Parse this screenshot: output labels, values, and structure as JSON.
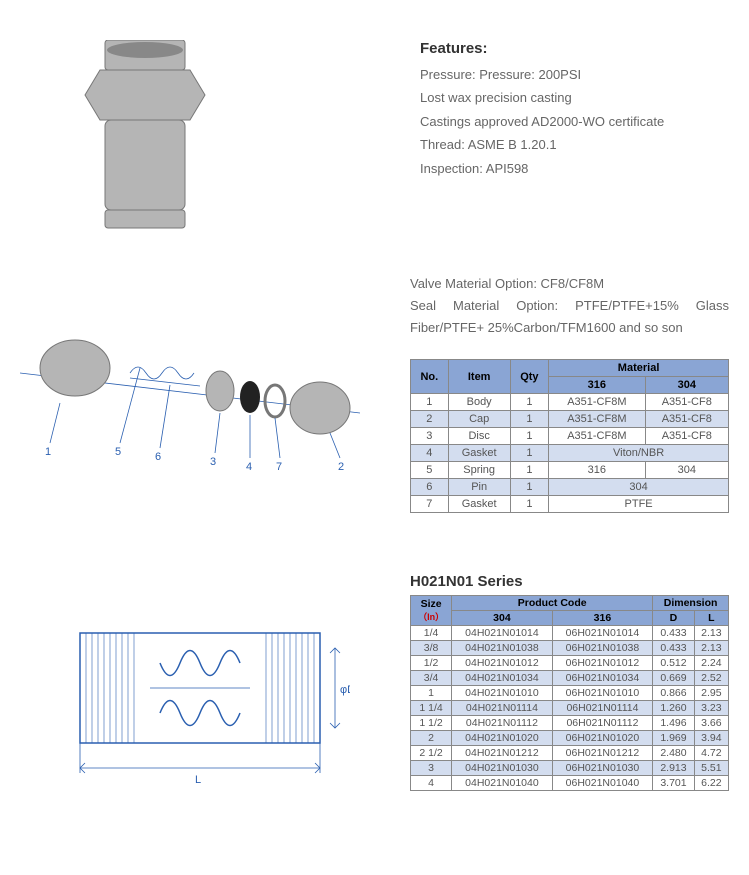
{
  "features": {
    "title": "Features:",
    "lines": [
      "Pressure: Pressure: 200PSI",
      "Lost wax precision casting",
      "Castings approved AD2000-WO certificate",
      "Thread: ASME B 1.20.1",
      "Inspection: API598"
    ]
  },
  "material_options": {
    "line1": "Valve Material Option: CF8/CF8M",
    "line2": "Seal Material Option: PTFE/PTFE+15% Glass Fiber/PTFE+ 25%Carbon/TFM1600 and so son"
  },
  "bom": {
    "headers": {
      "no": "No.",
      "item": "Item",
      "qty": "Qty",
      "material": "Material",
      "m316": "316",
      "m304": "304"
    },
    "rows": [
      {
        "no": "1",
        "item": "Body",
        "qty": "1",
        "m316": "A351-CF8M",
        "m304": "A351-CF8",
        "alt": false
      },
      {
        "no": "2",
        "item": "Cap",
        "qty": "1",
        "m316": "A351-CF8M",
        "m304": "A351-CF8",
        "alt": true
      },
      {
        "no": "3",
        "item": "Disc",
        "qty": "1",
        "m316": "A351-CF8M",
        "m304": "A351-CF8",
        "alt": false
      },
      {
        "no": "4",
        "item": "Gasket",
        "qty": "1",
        "merged": "Viton/NBR",
        "alt": true
      },
      {
        "no": "5",
        "item": "Spring",
        "qty": "1",
        "m316": "316",
        "m304": "304",
        "alt": false
      },
      {
        "no": "6",
        "item": "Pin",
        "qty": "1",
        "merged": "304",
        "alt": true
      },
      {
        "no": "7",
        "item": "Gasket",
        "qty": "1",
        "merged": "PTFE",
        "alt": false
      }
    ]
  },
  "series": {
    "title": "H021N01 Series",
    "headers": {
      "size": "Size",
      "unit": "（In）",
      "code": "Product Code",
      "c304": "304",
      "c316": "316",
      "dim": "Dimension",
      "d": "D",
      "l": "L"
    },
    "rows": [
      {
        "size": "1/4",
        "c304": "04H021N01014",
        "c316": "06H021N01014",
        "d": "0.433",
        "l": "2.13",
        "alt": false
      },
      {
        "size": "3/8",
        "c304": "04H021N01038",
        "c316": "06H021N01038",
        "d": "0.433",
        "l": "2.13",
        "alt": true
      },
      {
        "size": "1/2",
        "c304": "04H021N01012",
        "c316": "06H021N01012",
        "d": "0.512",
        "l": "2.24",
        "alt": false
      },
      {
        "size": "3/4",
        "c304": "04H021N01034",
        "c316": "06H021N01034",
        "d": "0.669",
        "l": "2.52",
        "alt": true
      },
      {
        "size": "1",
        "c304": "04H021N01010",
        "c316": "06H021N01010",
        "d": "0.866",
        "l": "2.95",
        "alt": false
      },
      {
        "size": "1 1/4",
        "c304": "04H021N01114",
        "c316": "06H021N01114",
        "d": "1.260",
        "l": "3.23",
        "alt": true
      },
      {
        "size": "1 1/2",
        "c304": "04H021N01112",
        "c316": "06H021N01112",
        "d": "1.496",
        "l": "3.66",
        "alt": false
      },
      {
        "size": "2",
        "c304": "04H021N01020",
        "c316": "06H021N01020",
        "d": "1.969",
        "l": "3.94",
        "alt": true
      },
      {
        "size": "2 1/2",
        "c304": "04H021N01212",
        "c316": "06H021N01212",
        "d": "2.480",
        "l": "4.72",
        "alt": false
      },
      {
        "size": "3",
        "c304": "04H021N01030",
        "c316": "06H021N01030",
        "d": "2.913",
        "l": "5.51",
        "alt": true
      },
      {
        "size": "4",
        "c304": "04H021N01040",
        "c316": "06H021N01040",
        "d": "3.701",
        "l": "6.22",
        "alt": false
      }
    ]
  },
  "colors": {
    "header_bg": "#8aa5d4",
    "alt_bg": "#d3ddef",
    "border": "#888888",
    "blueprint": "#2a5fb0"
  },
  "callouts": [
    "1",
    "2",
    "3",
    "4",
    "5",
    "6",
    "7"
  ],
  "dim_labels": {
    "L": "L",
    "D": "φD"
  }
}
